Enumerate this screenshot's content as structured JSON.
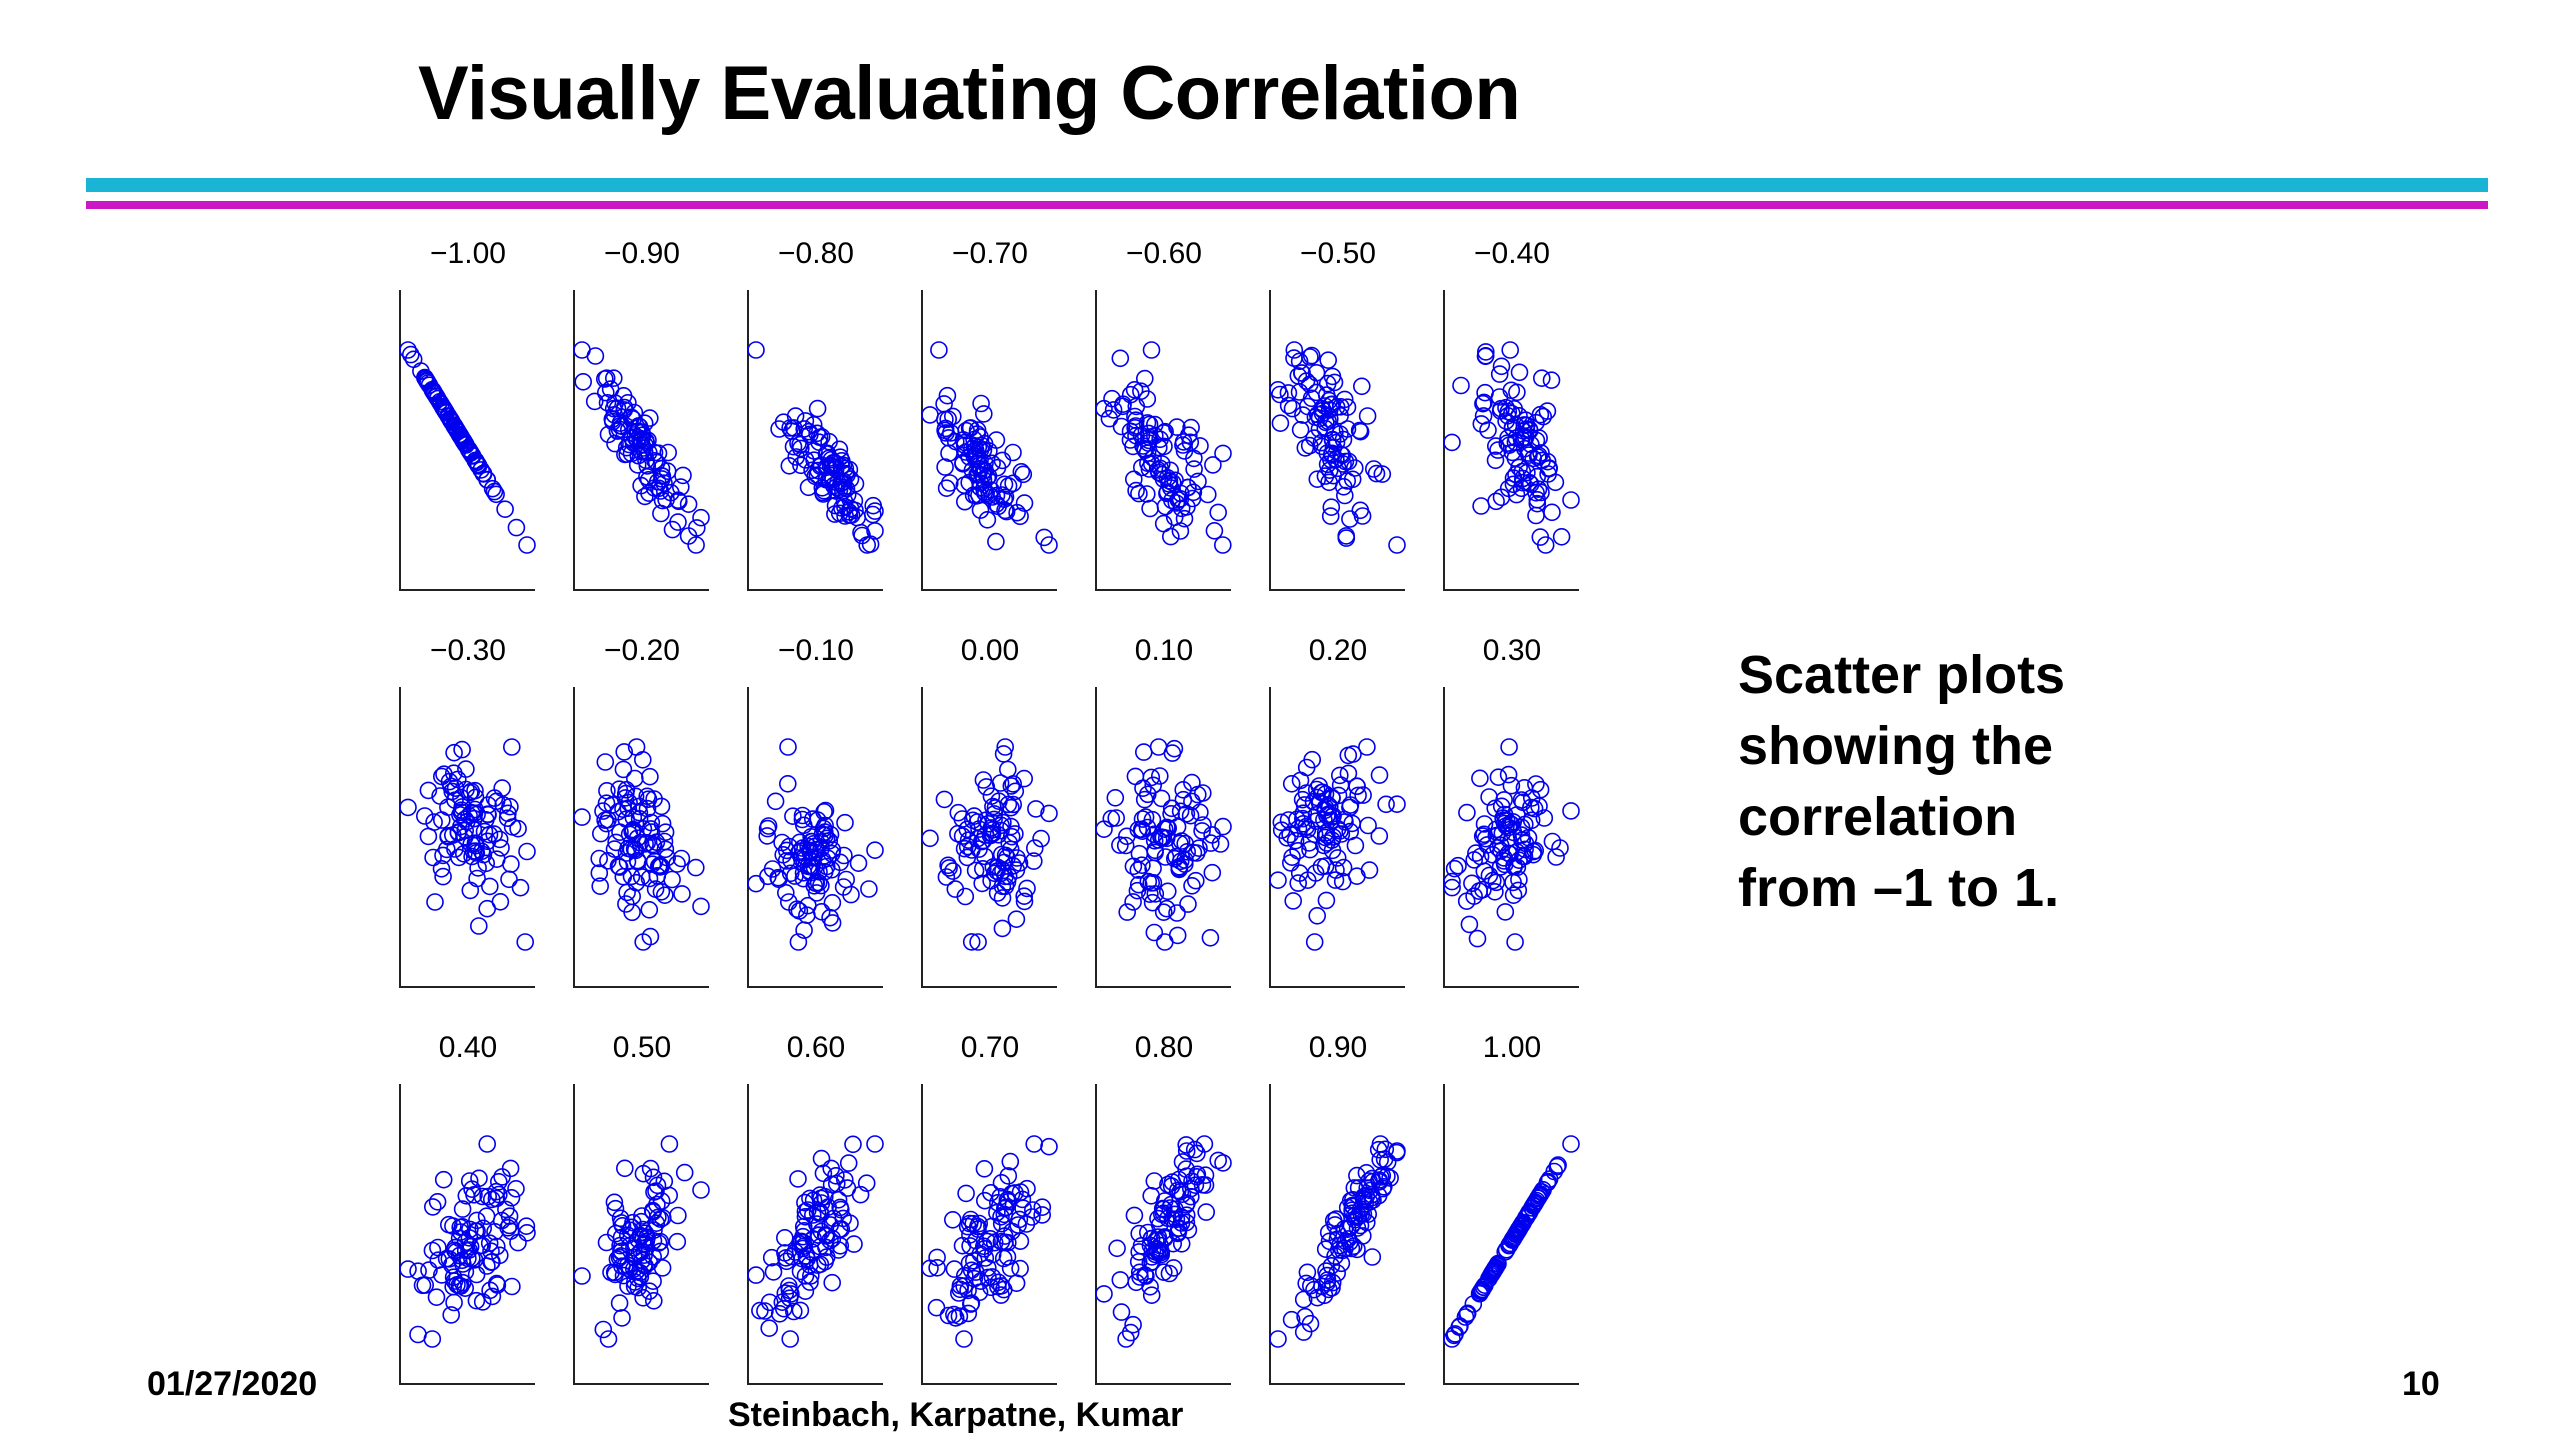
{
  "title": "Visually Evaluating Correlation",
  "colors": {
    "accent_cyan": "#1ab5d4",
    "accent_magenta": "#cc18c4",
    "marker": "#0000ee",
    "axis": "#222222"
  },
  "description": {
    "lines": [
      "Scatter plots",
      "showing the",
      "correlation",
      "from –1 to 1."
    ]
  },
  "footer": {
    "date": "01/27/2020",
    "authors": "Steinbach, Karpatne, Kumar",
    "page": "10"
  },
  "chart_data": {
    "type": "scatter",
    "title": "Visually Evaluating Correlation",
    "xlabel": "",
    "ylabel": "",
    "grid": false,
    "marker": "open-circle",
    "points_per_panel": 100,
    "panels": [
      {
        "label": "−1.00",
        "r": -1.0
      },
      {
        "label": "−0.90",
        "r": -0.9
      },
      {
        "label": "−0.80",
        "r": -0.8
      },
      {
        "label": "−0.70",
        "r": -0.7
      },
      {
        "label": "−0.60",
        "r": -0.6
      },
      {
        "label": "−0.50",
        "r": -0.5
      },
      {
        "label": "−0.40",
        "r": -0.4
      },
      {
        "label": "−0.30",
        "r": -0.3
      },
      {
        "label": "−0.20",
        "r": -0.2
      },
      {
        "label": "−0.10",
        "r": -0.1
      },
      {
        "label": "0.00",
        "r": 0.0
      },
      {
        "label": "0.10",
        "r": 0.1
      },
      {
        "label": "0.20",
        "r": 0.2
      },
      {
        "label": "0.30",
        "r": 0.3
      },
      {
        "label": "0.40",
        "r": 0.4
      },
      {
        "label": "0.50",
        "r": 0.5
      },
      {
        "label": "0.60",
        "r": 0.6
      },
      {
        "label": "0.70",
        "r": 0.7
      },
      {
        "label": "0.80",
        "r": 0.8
      },
      {
        "label": "0.90",
        "r": 0.9
      },
      {
        "label": "1.00",
        "r": 1.0
      }
    ]
  }
}
